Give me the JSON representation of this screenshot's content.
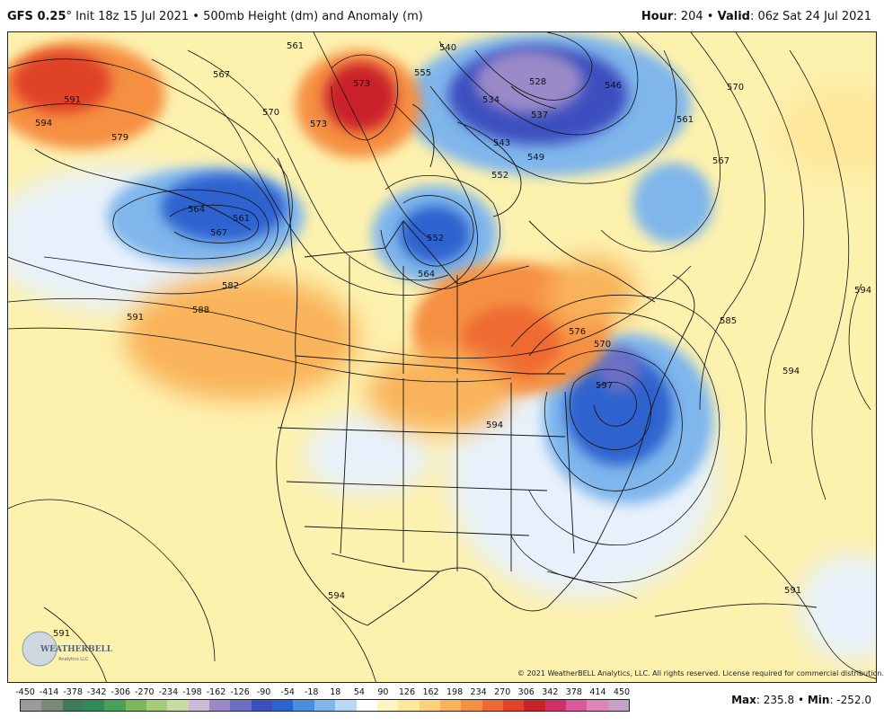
{
  "header": {
    "model": "GFS 0.25",
    "model_suffix": "°",
    "init": "Init 18z 15 Jul 2021",
    "separator": "•",
    "product": "500mb Height (dm) and Anomaly (m)",
    "hour_label": "Hour",
    "hour_value": ": 204",
    "valid_label": "Valid",
    "valid_value": ": 06z Sat 24 Jul 2021"
  },
  "map": {
    "copyright": "© 2021 WeatherBELL Analytics, LLC. All rights reserved. License required for commercial distribution.",
    "logo_text": "WEATHERBELL",
    "logo_sub": "Analytics LLC",
    "contour_labels": [
      "594",
      "591",
      "579",
      "567",
      "561",
      "564",
      "567",
      "570",
      "573",
      "573",
      "561",
      "555",
      "540",
      "534",
      "537",
      "528",
      "546",
      "570",
      "561",
      "567",
      "549",
      "552",
      "543",
      "552",
      "564",
      "582",
      "588",
      "591",
      "576",
      "570",
      "585",
      "594",
      "597",
      "594",
      "594",
      "591",
      "591",
      "594"
    ],
    "colors": {
      "background_yellow": "#fdf1ae",
      "deep_blue": "#2a3fb0",
      "mid_blue": "#4c8ae0",
      "light_blue": "#a9cdf2",
      "pale_blue": "#e8f1fb",
      "orange": "#f5a24a",
      "deep_orange": "#e8582a",
      "red": "#d8261e",
      "purple": "#7a6fb6"
    }
  },
  "legend": {
    "ticks": [
      "-450",
      "-414",
      "-378",
      "-342",
      "-306",
      "-270",
      "-234",
      "-198",
      "-162",
      "-126",
      "-90",
      "-54",
      "-18",
      "18",
      "54",
      "90",
      "126",
      "162",
      "198",
      "234",
      "270",
      "306",
      "342",
      "378",
      "414",
      "450"
    ],
    "colors": [
      "#9a9a9a",
      "#7a8a7a",
      "#3f7a5a",
      "#2e8b57",
      "#4aa05a",
      "#7ab85a",
      "#a6cc7a",
      "#c9dca0",
      "#cbbad8",
      "#9a8ac8",
      "#6b6fc4",
      "#3c4fbf",
      "#2d63cf",
      "#4a8ee0",
      "#7fb6ec",
      "#b9d8f5",
      "#ffffff",
      "#fdf6c0",
      "#fde79a",
      "#fdd27a",
      "#f9b35a",
      "#f58f42",
      "#ef6a33",
      "#e04327",
      "#c9232a",
      "#d0306a",
      "#d85a9a",
      "#dc85bb",
      "#c7a0c8"
    ]
  },
  "stats": {
    "max_label": "Max",
    "max_value": ": 235.8",
    "sep": "•",
    "min_label": "Min",
    "min_value": ": -252.0"
  }
}
